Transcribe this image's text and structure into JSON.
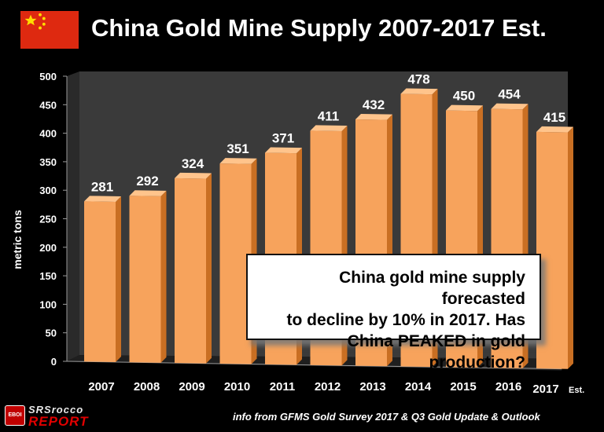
{
  "header": {
    "title": "China Gold Mine Supply 2007-2017 Est."
  },
  "colors": {
    "background": "#000000",
    "bar_front": "#f7a35c",
    "bar_side": "#c96f23",
    "bar_top": "#ffc48c",
    "plot_wall": "#3a3a3a",
    "flag_red": "#de2910",
    "flag_star": "#ffde00"
  },
  "chart_data": {
    "type": "bar",
    "title": "China Gold Mine Supply 2007-2017 Est.",
    "xlabel": "",
    "ylabel": "metric tons",
    "ylim": [
      0,
      500
    ],
    "yticks": [
      0,
      50,
      100,
      150,
      200,
      250,
      300,
      350,
      400,
      450,
      500
    ],
    "categories": [
      "2007",
      "2008",
      "2009",
      "2010",
      "2011",
      "2012",
      "2013",
      "2014",
      "2015",
      "2016",
      "2017"
    ],
    "category_suffix": [
      "",
      "",
      "",
      "",
      "",
      "",
      "",
      "",
      "",
      "",
      "Est."
    ],
    "values": [
      281,
      292,
      324,
      351,
      371,
      411,
      432,
      478,
      450,
      454,
      415
    ],
    "data_labels": [
      "281",
      "292",
      "324",
      "351",
      "371",
      "411",
      "432",
      "478",
      "450",
      "454",
      "415"
    ],
    "grid": false,
    "legend": "none"
  },
  "annotation": {
    "lines": [
      "China gold mine supply forecasted",
      "to decline by 10% in 2017.  Has",
      "China PEAKED in gold production?"
    ]
  },
  "footer": {
    "logo_badge": "EBOI",
    "logo_top": "SRSrocco",
    "logo_bottom": "REPORT",
    "source": "info from GFMS Gold Survey 2017 & Q3  Gold Update & Outlook"
  }
}
